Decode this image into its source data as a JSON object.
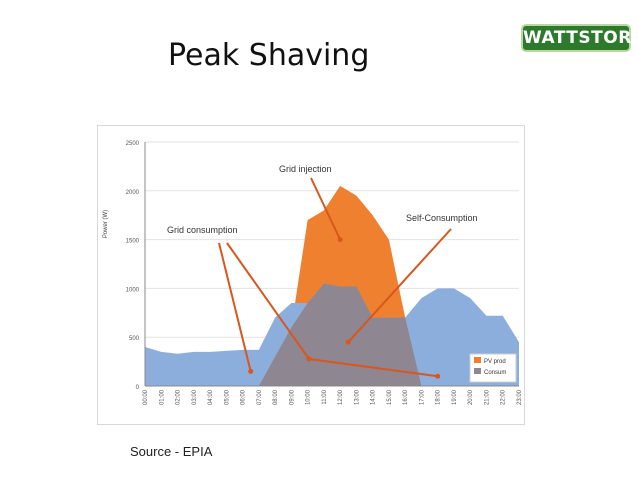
{
  "slide": {
    "title": "Peak Shaving",
    "logo_text": "WATTSTOR",
    "source": "Source - EPIA"
  },
  "colors": {
    "pv": "#ee8030",
    "consum": "#8caedd",
    "overlap": "#8e8690",
    "arrow": "#d9561c",
    "axis": "#888888",
    "grid": "#e2e2e2"
  },
  "chart_data": {
    "type": "area",
    "ylabel": "Power (W)",
    "ylim": [
      0,
      2500
    ],
    "yticks": [
      0,
      500,
      1000,
      1500,
      2000,
      2500
    ],
    "categories": [
      "00:00",
      "01:00",
      "02:00",
      "03:00",
      "04:00",
      "05:00",
      "06:00",
      "07:00",
      "08:00",
      "09:00",
      "10:00",
      "11:00",
      "12:00",
      "13:00",
      "14:00",
      "15:00",
      "16:00",
      "17:00",
      "18:00",
      "19:00",
      "20:00",
      "21:00",
      "22:00",
      "23:00"
    ],
    "series": [
      {
        "name": "PV prod",
        "values": [
          0,
          0,
          0,
          0,
          0,
          0,
          0,
          0,
          300,
          600,
          1700,
          1800,
          2050,
          1950,
          1750,
          1500,
          700,
          0,
          0,
          0,
          0,
          0,
          0,
          0
        ]
      },
      {
        "name": "Consum",
        "values": [
          400,
          350,
          330,
          350,
          350,
          360,
          370,
          370,
          700,
          850,
          850,
          1050,
          1020,
          1020,
          700,
          700,
          700,
          900,
          1000,
          1000,
          900,
          720,
          720,
          450
        ]
      }
    ],
    "annotations": [
      {
        "label": "Grid injection",
        "target": {
          "x": 12,
          "y": 1500
        }
      },
      {
        "label": "Grid consumption",
        "targets": [
          {
            "x": 6.5,
            "y": 150
          },
          {
            "x": 18,
            "y": 100
          }
        ]
      },
      {
        "label": "Self-Consumption",
        "target": {
          "x": 12.5,
          "y": 450
        }
      }
    ]
  }
}
